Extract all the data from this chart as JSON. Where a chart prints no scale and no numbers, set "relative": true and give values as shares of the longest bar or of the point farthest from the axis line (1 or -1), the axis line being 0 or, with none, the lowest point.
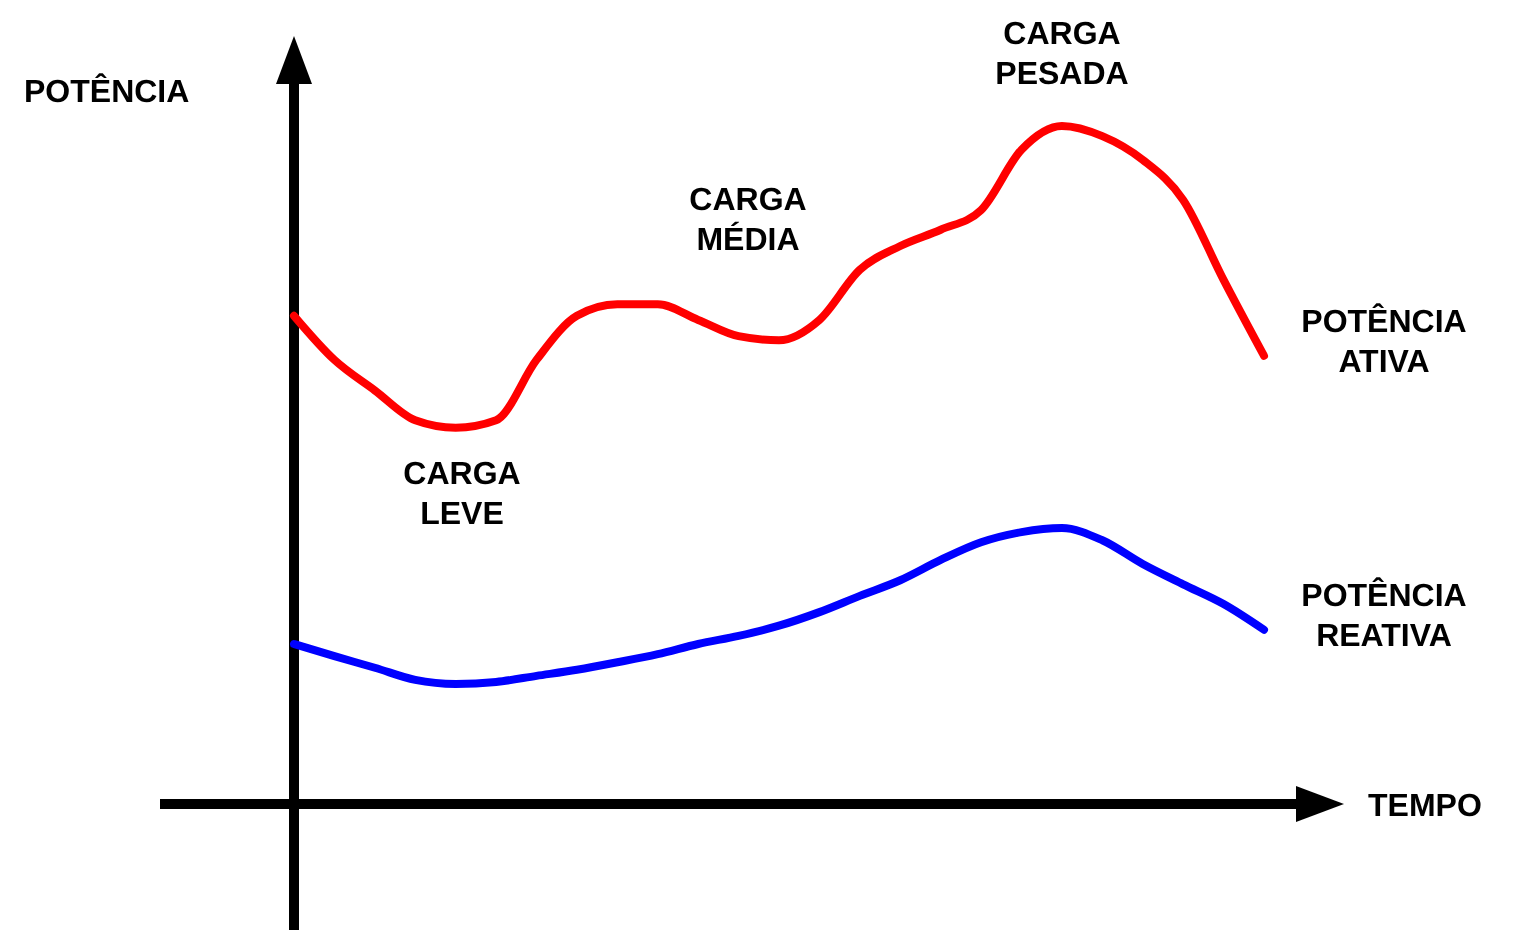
{
  "chart_data": {
    "type": "line",
    "relative": true,
    "xlabel": "TEMPO",
    "ylabel": "POTÊNCIA",
    "categories": [
      null,
      null,
      null,
      null,
      null,
      null,
      null,
      null,
      null,
      null,
      null,
      null,
      null,
      null,
      null,
      null,
      null,
      null,
      null,
      null,
      null,
      null,
      null,
      null,
      null
    ],
    "series": [
      {
        "name": "POTÊNCIA ATIVA",
        "color": "#ff0000",
        "values": [
          0.72,
          0.655,
          0.61,
          0.566,
          0.555,
          0.566,
          0.655,
          0.72,
          0.737,
          0.737,
          0.714,
          0.69,
          0.684,
          0.714,
          0.788,
          0.823,
          0.847,
          0.876,
          0.965,
          1,
          0.985,
          0.95,
          0.891,
          0.773,
          0.661
        ]
      },
      {
        "name": "POTÊNCIA REATIVA",
        "color": "#0000ff",
        "values": [
          0.236,
          0.218,
          0.201,
          0.183,
          0.177,
          0.18,
          0.189,
          0.198,
          0.209,
          0.221,
          0.236,
          0.248,
          0.263,
          0.283,
          0.307,
          0.33,
          0.36,
          0.386,
          0.401,
          0.407,
          0.389,
          0.354,
          0.324,
          0.295,
          0.257
        ]
      }
    ],
    "annotations": [
      "CARGA LEVE",
      "CARGA MÉDIA",
      "CARGA PESADA"
    ],
    "marker": "none",
    "line_style": "solid"
  }
}
